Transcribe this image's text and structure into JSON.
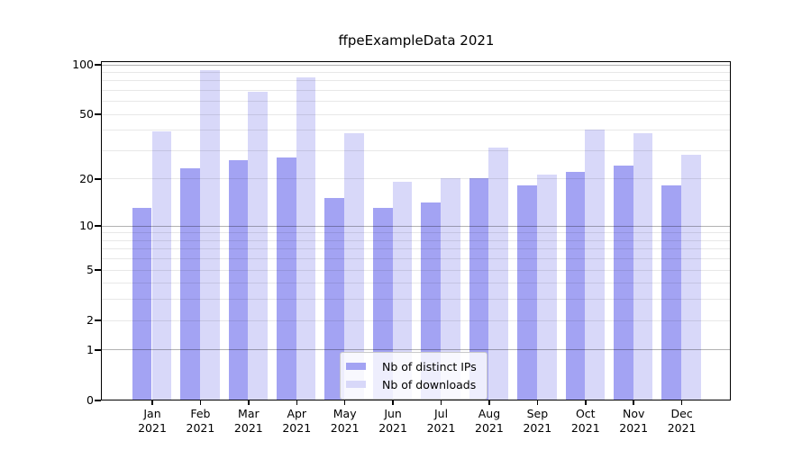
{
  "title": "ffpeExampleData 2021",
  "chart_data": {
    "type": "bar",
    "title": "ffpeExampleData 2021",
    "categories": [
      "Jan",
      "Feb",
      "Mar",
      "Apr",
      "May",
      "Jun",
      "Jul",
      "Aug",
      "Sep",
      "Oct",
      "Nov",
      "Dec"
    ],
    "category_year": "2021",
    "series": [
      {
        "name": "Nb of distinct IPs",
        "color": "#a3a3f3",
        "values": [
          13,
          23,
          26,
          27,
          15,
          13,
          14,
          20,
          18,
          22,
          24,
          18
        ]
      },
      {
        "name": "Nb of downloads",
        "color": "#d8d8f9",
        "values": [
          39,
          92,
          68,
          83,
          38,
          19,
          20,
          31,
          21,
          40,
          38,
          28
        ]
      }
    ],
    "xlabel": "",
    "ylabel": "",
    "ylim": [
      0,
      100
    ],
    "y_scale": "log10(value+1)",
    "y_axis_ticks": [
      0,
      1,
      2,
      5,
      10,
      20,
      50,
      100
    ],
    "y_major_gridlines": [
      1,
      10,
      100
    ],
    "y_minor_gridlines": [
      2,
      3,
      4,
      5,
      6,
      7,
      8,
      9,
      20,
      30,
      40,
      50,
      60,
      70,
      80,
      90
    ],
    "grid": true,
    "legend_position": "bottom-center"
  },
  "colors": {
    "background": "#ffffff",
    "spine": "#000000",
    "bar_distinct_ips": "#a3a3f3",
    "bar_downloads": "#d8d8f9",
    "gridline_minor": "#e8e8e8",
    "gridline_major": "#b2b2b2",
    "legend_border": "#c8c8c8"
  }
}
